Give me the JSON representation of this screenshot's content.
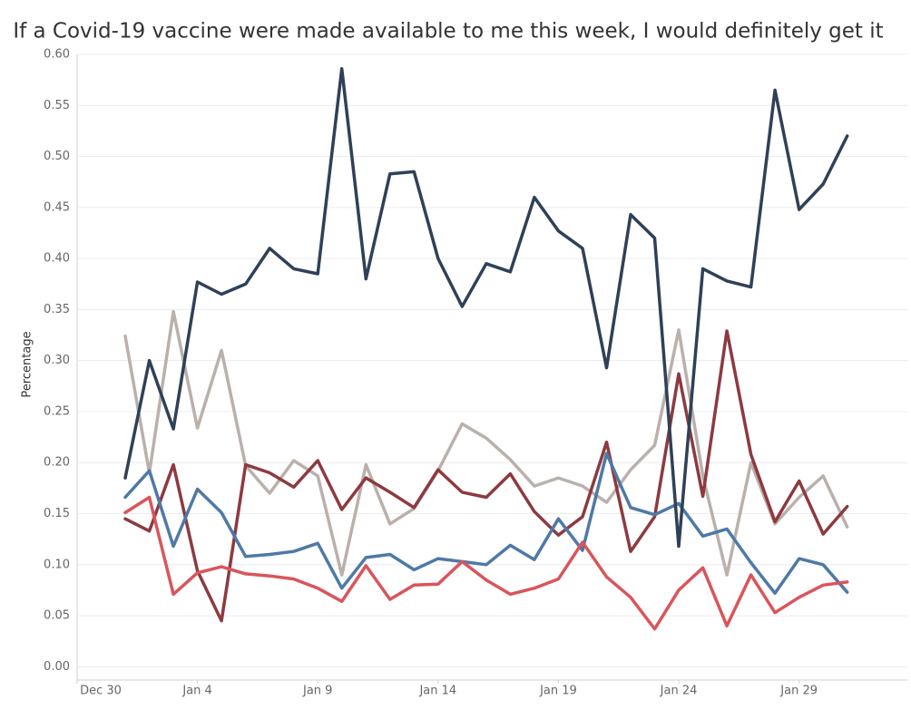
{
  "chart_data": {
    "type": "line",
    "title": "If a Covid-19 vaccine were made available to me this week, I would definitely get it",
    "y_label": "Percentage",
    "x": [
      1,
      2,
      3,
      4,
      5,
      6,
      7,
      8,
      9,
      10,
      11,
      12,
      13,
      14,
      15,
      16,
      17,
      18,
      19,
      20,
      21,
      22,
      23,
      24,
      25,
      26,
      27,
      28,
      29,
      30,
      31
    ],
    "xlim": [
      -1,
      33.5
    ],
    "xticks": [
      {
        "value": -1,
        "label": "Dec 30"
      },
      {
        "value": 4,
        "label": "Jan 4"
      },
      {
        "value": 9,
        "label": "Jan 9"
      },
      {
        "value": 14,
        "label": "Jan 14"
      },
      {
        "value": 19,
        "label": "Jan 19"
      },
      {
        "value": 24,
        "label": "Jan 24"
      },
      {
        "value": 29,
        "label": "Jan 29"
      }
    ],
    "ylim": [
      -0.013,
      0.6
    ],
    "yticks": [
      {
        "value": 0,
        "label": "0.00"
      },
      {
        "value": 0.05,
        "label": "0.05"
      },
      {
        "value": 0.1,
        "label": "0.10"
      },
      {
        "value": 0.15,
        "label": "0.15"
      },
      {
        "value": 0.2,
        "label": "0.20"
      },
      {
        "value": 0.25,
        "label": "0.25"
      },
      {
        "value": 0.3,
        "label": "0.30"
      },
      {
        "value": 0.35,
        "label": "0.35"
      },
      {
        "value": 0.4,
        "label": "0.40"
      },
      {
        "value": 0.45,
        "label": "0.45"
      },
      {
        "value": 0.5,
        "label": "0.50"
      },
      {
        "value": 0.55,
        "label": "0.55"
      },
      {
        "value": 0.6,
        "label": "0.60"
      }
    ],
    "grid": true,
    "series": [
      {
        "color": "#bab0ac",
        "values": [
          0.324,
          0.19,
          0.348,
          0.234,
          0.31,
          0.197,
          0.17,
          0.202,
          0.187,
          0.09,
          0.198,
          0.14,
          0.155,
          0.192,
          0.238,
          0.224,
          0.203,
          0.177,
          0.185,
          0.177,
          0.161,
          0.193,
          0.217,
          0.33,
          0.187,
          0.09,
          0.2,
          0.14,
          0.166,
          0.187,
          0.137
        ]
      },
      {
        "color": "#8c3a40",
        "values": [
          0.145,
          0.133,
          0.198,
          0.094,
          0.045,
          0.198,
          0.19,
          0.176,
          0.202,
          0.154,
          0.185,
          0.171,
          0.156,
          0.193,
          0.171,
          0.166,
          0.189,
          0.152,
          0.129,
          0.147,
          0.22,
          0.113,
          0.147,
          0.287,
          0.167,
          0.329,
          0.208,
          0.142,
          0.182,
          0.13,
          0.157
        ]
      },
      {
        "color": "#4e79a7",
        "values": [
          0.166,
          0.192,
          0.118,
          0.174,
          0.151,
          0.108,
          0.11,
          0.113,
          0.121,
          0.077,
          0.107,
          0.11,
          0.095,
          0.106,
          0.103,
          0.1,
          0.119,
          0.105,
          0.145,
          0.114,
          0.209,
          0.156,
          0.149,
          0.16,
          0.128,
          0.135,
          0.102,
          0.072,
          0.106,
          0.1,
          0.073
        ]
      },
      {
        "color": "#d9555b",
        "values": [
          0.151,
          0.166,
          0.071,
          0.092,
          0.098,
          0.091,
          0.089,
          0.086,
          0.077,
          0.064,
          0.099,
          0.066,
          0.08,
          0.081,
          0.103,
          0.085,
          0.071,
          0.077,
          0.086,
          0.122,
          0.088,
          0.068,
          0.037,
          0.075,
          0.097,
          0.04,
          0.09,
          0.053,
          0.068,
          0.08,
          0.083
        ]
      },
      {
        "color": "#2f4157",
        "values": [
          0.185,
          0.3,
          0.233,
          0.377,
          0.365,
          0.375,
          0.41,
          0.39,
          0.385,
          0.586,
          0.38,
          0.483,
          0.485,
          0.4,
          0.353,
          0.395,
          0.387,
          0.46,
          0.427,
          0.41,
          0.293,
          0.443,
          0.42,
          0.118,
          0.39,
          0.378,
          0.372,
          0.565,
          0.448,
          0.473,
          0.52
        ]
      }
    ]
  }
}
